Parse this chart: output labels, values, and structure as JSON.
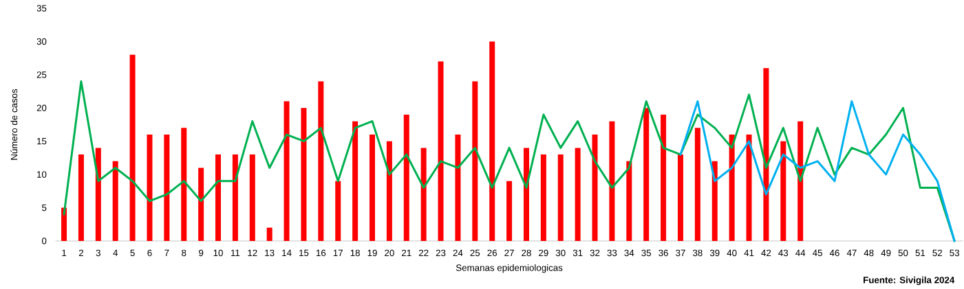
{
  "chart_data": {
    "type": "bar",
    "xlabel": "Semanas epidemiologicas",
    "ylabel": "Número de casos",
    "annotations": [
      "Fuente: Sivigila 2024"
    ],
    "categories": [
      "1",
      "2",
      "3",
      "4",
      "5",
      "6",
      "7",
      "8",
      "9",
      "10",
      "11",
      "12",
      "13",
      "14",
      "15",
      "16",
      "17",
      "18",
      "19",
      "20",
      "21",
      "22",
      "23",
      "24",
      "25",
      "26",
      "27",
      "28",
      "29",
      "30",
      "31",
      "32",
      "33",
      "34",
      "35",
      "36",
      "37",
      "38",
      "39",
      "40",
      "41",
      "42",
      "43",
      "44",
      "45",
      "46",
      "47",
      "48",
      "49",
      "50",
      "51",
      "52",
      "53"
    ],
    "ylim": [
      0,
      35
    ],
    "yticks": [
      0,
      5,
      10,
      15,
      20,
      25,
      30,
      35
    ],
    "series": [
      {
        "color": "#ff0000",
        "values": [
          5,
          13,
          14,
          12,
          28,
          16,
          16,
          17,
          11,
          13,
          13,
          13,
          2,
          21,
          20,
          24,
          9,
          18,
          16,
          15,
          19,
          14,
          27,
          16,
          24,
          30,
          9,
          14,
          13,
          13,
          14,
          16,
          18,
          12,
          20,
          19,
          13,
          17,
          12,
          16,
          16,
          26,
          15,
          18,
          null,
          null,
          null,
          null,
          null,
          null,
          null,
          null,
          null
        ]
      },
      {
        "type": "line",
        "color": "#00b050",
        "values": [
          4,
          24,
          9,
          11,
          9,
          6,
          7,
          9,
          6,
          9,
          9,
          18,
          11,
          16,
          15,
          17,
          9,
          17,
          18,
          10,
          13,
          8,
          12,
          11,
          14,
          8,
          14,
          8,
          19,
          14,
          18,
          12,
          8,
          11,
          21,
          14,
          13,
          19,
          17,
          14,
          22,
          11,
          17,
          9,
          17,
          10,
          14,
          13,
          16,
          20,
          8,
          8,
          0
        ]
      },
      {
        "type": "line",
        "color": "#00b0f0",
        "values": [
          null,
          null,
          null,
          null,
          null,
          null,
          null,
          null,
          null,
          null,
          null,
          null,
          null,
          null,
          null,
          null,
          null,
          null,
          null,
          null,
          null,
          null,
          null,
          null,
          null,
          null,
          null,
          null,
          null,
          null,
          null,
          null,
          null,
          null,
          null,
          null,
          13,
          21,
          9,
          11,
          15,
          7,
          13,
          11,
          12,
          9,
          21,
          13,
          10,
          16,
          13,
          9,
          0
        ]
      }
    ]
  }
}
